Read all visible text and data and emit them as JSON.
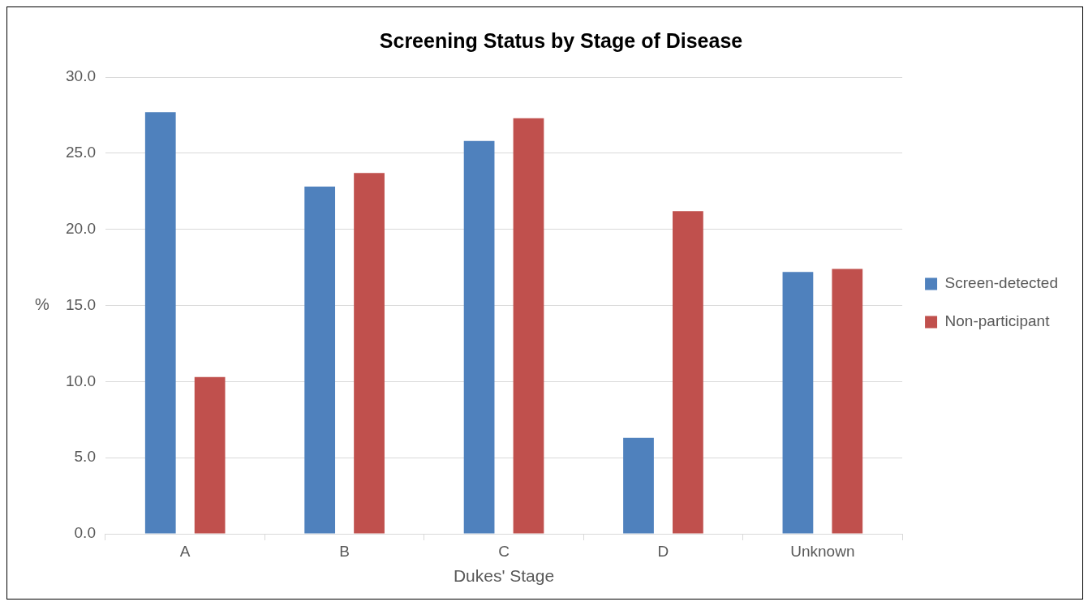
{
  "chart_data": {
    "type": "bar",
    "title": "Screening Status by Stage of Disease",
    "xlabel": "Dukes' Stage",
    "ylabel": "%",
    "categories": [
      "A",
      "B",
      "C",
      "D",
      "Unknown"
    ],
    "series": [
      {
        "name": "Screen-detected",
        "color": "#4f81bd",
        "values": [
          27.7,
          22.8,
          25.8,
          6.3,
          17.2
        ]
      },
      {
        "name": "Non-participant",
        "color": "#c0504d",
        "values": [
          10.3,
          23.7,
          27.3,
          21.2,
          17.4
        ]
      }
    ],
    "ylim": [
      0,
      30
    ],
    "yticks": [
      {
        "value": 0,
        "label": "0.0"
      },
      {
        "value": 5,
        "label": "5.0"
      },
      {
        "value": 10,
        "label": "10.0"
      },
      {
        "value": 15,
        "label": "15.0"
      },
      {
        "value": 20,
        "label": "20.0"
      },
      {
        "value": 25,
        "label": "25.0"
      },
      {
        "value": 30,
        "label": "30.0"
      }
    ],
    "grid": "y",
    "legend": "right"
  }
}
